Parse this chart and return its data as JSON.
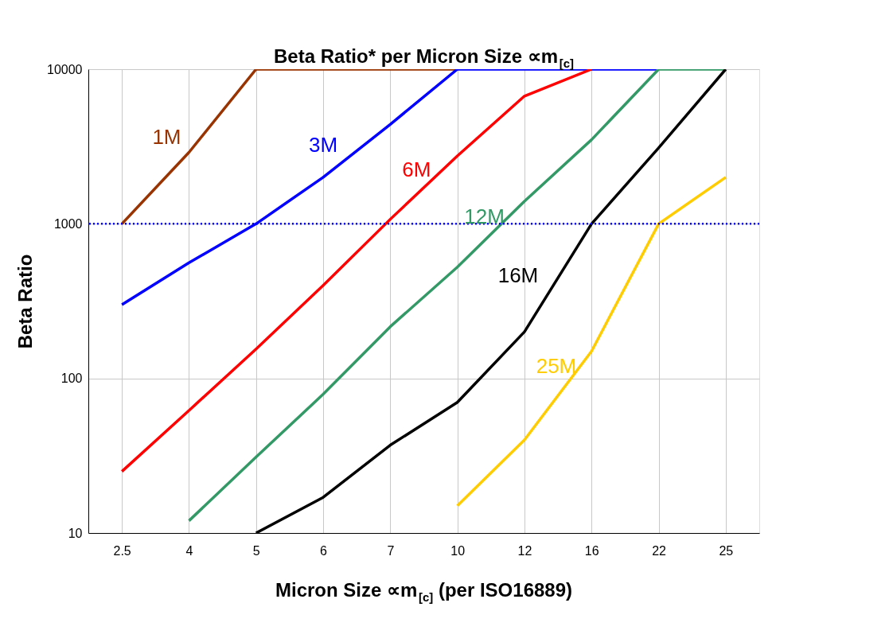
{
  "chart_data": {
    "type": "line",
    "title": "Beta Ratio* per Micron Size ∝m$_{[c]}$",
    "xlabel": "Micron Size ∝m$_{[c]}$ (per ISO16889)",
    "ylabel": "Beta Ratio",
    "categories": [
      "2.5",
      "4",
      "5",
      "6",
      "7",
      "10",
      "12",
      "16",
      "22",
      "25"
    ],
    "series": [
      {
        "name": "1M",
        "color": "#993300",
        "values": [
          1000,
          2900,
          10000,
          10000,
          10000,
          10000,
          null,
          null,
          null,
          null
        ]
      },
      {
        "name": "3M",
        "color": "#0000ff",
        "values": [
          300,
          560,
          1000,
          2000,
          4400,
          10000,
          10000,
          10000,
          10000,
          null
        ]
      },
      {
        "name": "6M",
        "color": "#ff0000",
        "values": [
          25,
          62,
          155,
          400,
          1070,
          2750,
          6700,
          10000,
          null,
          null
        ]
      },
      {
        "name": "12M",
        "color": "#339966",
        "values": [
          null,
          12,
          31,
          79,
          216,
          525,
          1400,
          3500,
          10000,
          10000
        ]
      },
      {
        "name": "16M",
        "color": "#000000",
        "values": [
          null,
          null,
          10,
          17,
          37,
          70,
          200,
          1000,
          3100,
          10000
        ]
      },
      {
        "name": "25M",
        "color": "#ffcc00",
        "values": [
          null,
          null,
          null,
          null,
          null,
          15,
          40,
          150,
          1000,
          2000
        ]
      }
    ],
    "log": "y",
    "ylim": [
      10,
      10000
    ],
    "yticks": [
      10,
      100,
      1000,
      10000
    ],
    "grid": true,
    "legend": false,
    "ref_lines": [
      {
        "axis": "y",
        "value": 1000,
        "color": "#0000ff",
        "line_style": "dotted"
      }
    ]
  }
}
